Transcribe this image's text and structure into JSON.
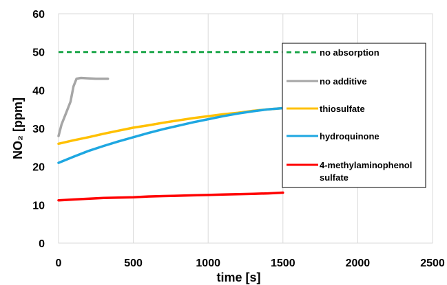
{
  "chart_data": {
    "type": "line",
    "xlabel": "time [s]",
    "ylabel": "NO₂ [ppm]",
    "xlim": [
      0,
      2500
    ],
    "ylim": [
      0,
      60
    ],
    "xticks": [
      "0",
      "500",
      "1000",
      "1500",
      "2000",
      "2500"
    ],
    "yticks": [
      "0",
      "10",
      "20",
      "30",
      "40",
      "50",
      "60"
    ],
    "grid": "vertical",
    "legend_position": "right",
    "series": [
      {
        "name": "no absorption",
        "color": "#1aa648",
        "style": "dashed",
        "x": [
          0,
          1500
        ],
        "y": [
          50,
          50
        ]
      },
      {
        "name": "no additive",
        "color": "#a6a6a6",
        "style": "solid",
        "x": [
          0,
          20,
          50,
          80,
          100,
          120,
          150,
          200,
          250,
          330
        ],
        "y": [
          28,
          31,
          34,
          37,
          41,
          43,
          43.2,
          43.1,
          43.0,
          43.0
        ]
      },
      {
        "name": "thiosulfate",
        "color": "#ffc000",
        "style": "solid",
        "x": [
          0,
          100,
          200,
          300,
          400,
          500,
          600,
          700,
          800,
          900,
          1000,
          1100,
          1200,
          1300,
          1400,
          1500
        ],
        "y": [
          26,
          26.9,
          27.7,
          28.6,
          29.4,
          30.2,
          30.8,
          31.5,
          32.1,
          32.7,
          33.2,
          33.7,
          34.1,
          34.6,
          35.0,
          35.3
        ]
      },
      {
        "name": "hydroquinone",
        "color": "#1ea7e1",
        "style": "solid",
        "x": [
          0,
          100,
          200,
          300,
          400,
          500,
          600,
          700,
          800,
          900,
          1000,
          1100,
          1200,
          1300,
          1400,
          1500
        ],
        "y": [
          21,
          22.6,
          24.1,
          25.4,
          26.6,
          27.7,
          28.8,
          29.8,
          30.7,
          31.6,
          32.4,
          33.2,
          33.9,
          34.5,
          35.0,
          35.3
        ]
      },
      {
        "name": "4-methylaminophenol sulfate",
        "legend_lines": [
          "4-methylaminophenol",
          "sulfate"
        ],
        "color": "#ff0000",
        "style": "solid",
        "x": [
          0,
          100,
          200,
          300,
          400,
          500,
          600,
          700,
          800,
          900,
          1000,
          1100,
          1200,
          1300,
          1400,
          1500
        ],
        "y": [
          11.2,
          11.4,
          11.6,
          11.8,
          11.9,
          12.0,
          12.2,
          12.3,
          12.4,
          12.5,
          12.6,
          12.7,
          12.8,
          12.9,
          13.0,
          13.2
        ]
      }
    ]
  }
}
